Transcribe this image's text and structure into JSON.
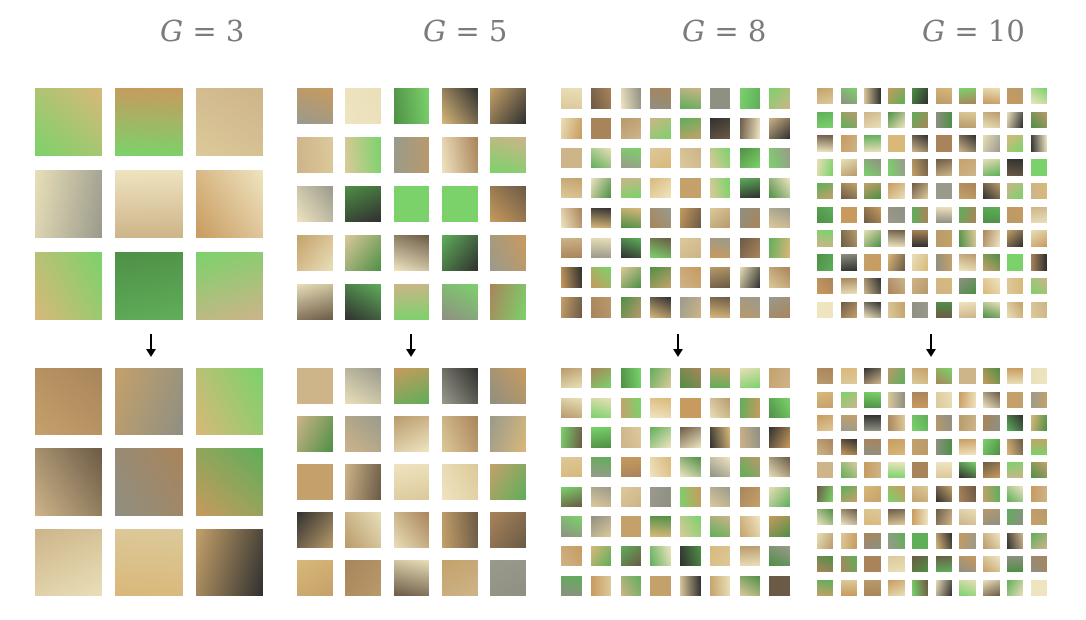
{
  "panels": [
    {
      "label_var": "G",
      "label_eq": " = ",
      "label_num": "3"
    },
    {
      "label_var": "G",
      "label_eq": " = ",
      "label_num": "5"
    },
    {
      "label_var": "G",
      "label_eq": " = ",
      "label_num": "8"
    },
    {
      "label_var": "G",
      "label_eq": " = ",
      "label_num": "10"
    }
  ],
  "colors": {
    "title": "#7b7b7b",
    "arrow": "#000000",
    "palette": [
      "#5fae5a",
      "#cdb489",
      "#a9845b",
      "#c89a5e",
      "#e9dfb8",
      "#30302f",
      "#9a9a8c",
      "#7bd26b",
      "#d9b87a",
      "#b89a6b",
      "#efe4c0",
      "#6b5a45",
      "#c4a16a",
      "#8f8f82",
      "#dcc99a",
      "#4f8f46"
    ]
  }
}
